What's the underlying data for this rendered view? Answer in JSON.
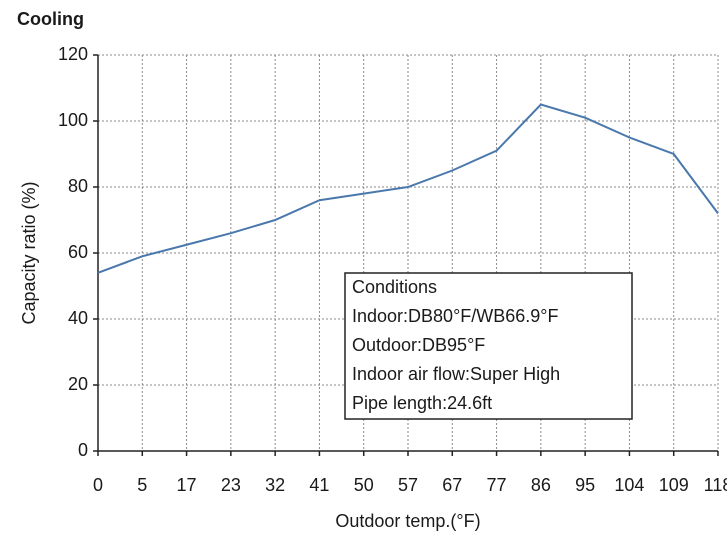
{
  "chart_data": {
    "type": "line",
    "title": "Cooling",
    "x_label": "Outdoor temp.(°F)",
    "y_label": "Capacity ratio (%)",
    "categories": [
      "0",
      "5",
      "17",
      "23",
      "32",
      "41",
      "50",
      "57",
      "67",
      "77",
      "86",
      "95",
      "104",
      "109",
      "118"
    ],
    "series": [
      {
        "name": "Capacity ratio",
        "color": "#4a78ad",
        "values": [
          54,
          59,
          62.5,
          66,
          70,
          76,
          78,
          80,
          85,
          91,
          105,
          101,
          95,
          90,
          72
        ]
      }
    ],
    "ylim": [
      0,
      120
    ],
    "yticks": [
      0,
      20,
      40,
      60,
      80,
      100,
      120
    ],
    "grid": true,
    "annotation": {
      "lines": [
        "Conditions",
        "Indoor:DB80°F/WB66.9°F",
        "Outdoor:DB95°F",
        "Indoor air flow:Super High",
        "Pipe length:24.6ft"
      ]
    }
  }
}
